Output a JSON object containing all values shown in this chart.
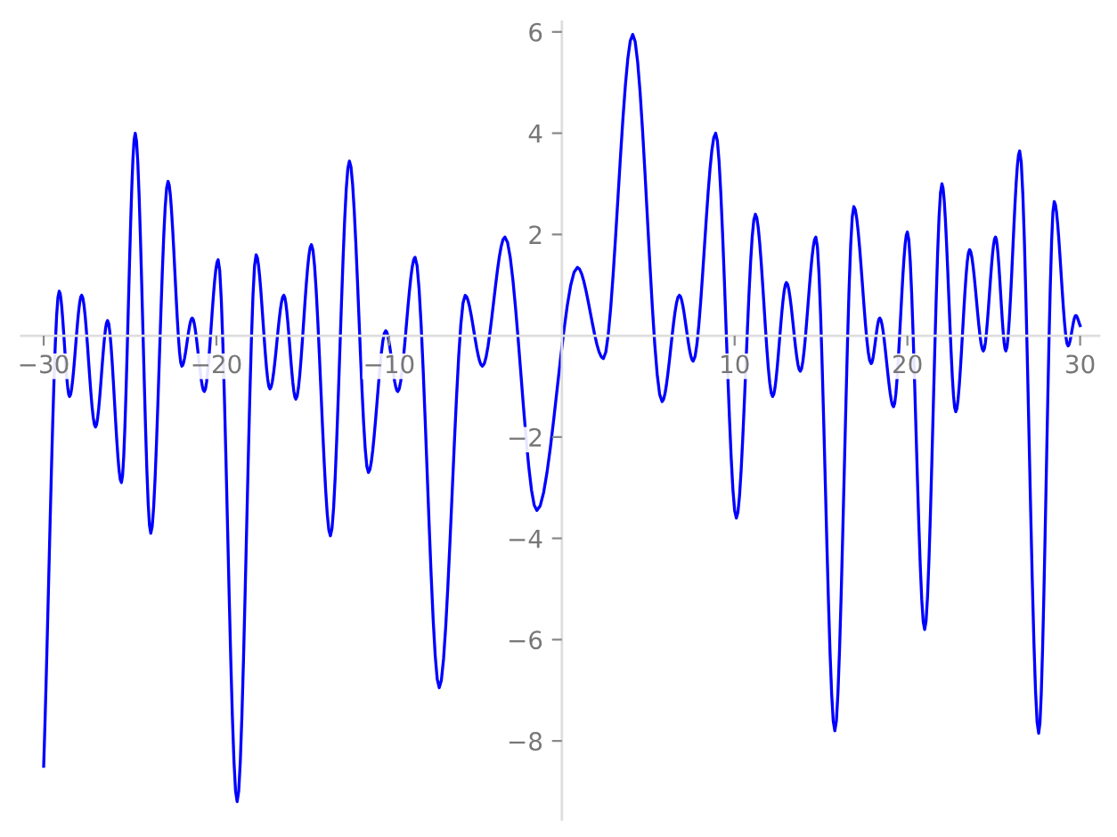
{
  "chart_data": {
    "type": "line",
    "x": [
      -30,
      -29.1,
      -28.5,
      -27.8,
      -27.0,
      -26.3,
      -25.5,
      -24.7,
      -23.8,
      -22.8,
      -22.0,
      -21.4,
      -20.7,
      -19.9,
      -18.8,
      -17.7,
      -16.9,
      -16.1,
      -15.4,
      -14.5,
      -13.4,
      -12.3,
      -11.2,
      -10.2,
      -9.5,
      -8.5,
      -7.1,
      -5.6,
      -4.6,
      -3.3,
      -1.45,
      0.9,
      2.4,
      4.1,
      5.8,
      6.8,
      7.6,
      8.9,
      10.1,
      11.2,
      12.2,
      13.0,
      13.8,
      14.7,
      15.8,
      16.9,
      17.9,
      18.4,
      19.2,
      20.0,
      21.0,
      22.0,
      22.8,
      23.6,
      24.4,
      25.1,
      25.7,
      26.5,
      27.6,
      28.5,
      29.3,
      29.75,
      30
    ],
    "series": [
      {
        "color": "#0000ff",
        "values": [
          -8.5,
          0.88,
          -1.2,
          0.8,
          -1.8,
          0.3,
          -2.9,
          4.0,
          -3.9,
          3.05,
          -0.6,
          0.35,
          -1.1,
          1.5,
          -9.2,
          1.6,
          -1.05,
          0.8,
          -1.25,
          1.8,
          -3.95,
          3.45,
          -2.7,
          0.1,
          -1.1,
          1.55,
          -6.95,
          0.8,
          -0.6,
          1.95,
          -3.45,
          1.35,
          -0.45,
          5.95,
          -1.3,
          0.8,
          -0.5,
          4.0,
          -3.6,
          2.4,
          -1.2,
          1.05,
          -0.7,
          1.95,
          -7.8,
          2.55,
          -0.55,
          0.35,
          -1.4,
          2.05,
          -5.8,
          3.0,
          -1.5,
          1.7,
          -0.3,
          1.95,
          -0.3,
          3.65,
          -7.85,
          2.65,
          -0.2,
          0.4,
          0.2
        ]
      }
    ],
    "xlim": [
      -31.3,
      31.1
    ],
    "ylim": [
      -9.55,
      6.2
    ],
    "xticks": [
      {
        "value": -30,
        "label": "−30"
      },
      {
        "value": -20,
        "label": "−20"
      },
      {
        "value": -10,
        "label": "−10"
      },
      10,
      20,
      30
    ],
    "yticks": [
      {
        "value": -8,
        "label": "−8"
      },
      {
        "value": -6,
        "label": "−6"
      },
      {
        "value": -4,
        "label": "−4"
      },
      {
        "value": -2,
        "label": "−2"
      },
      2,
      4,
      6
    ],
    "grid": false,
    "legend": false,
    "marker": "none",
    "line_style": "solid"
  }
}
